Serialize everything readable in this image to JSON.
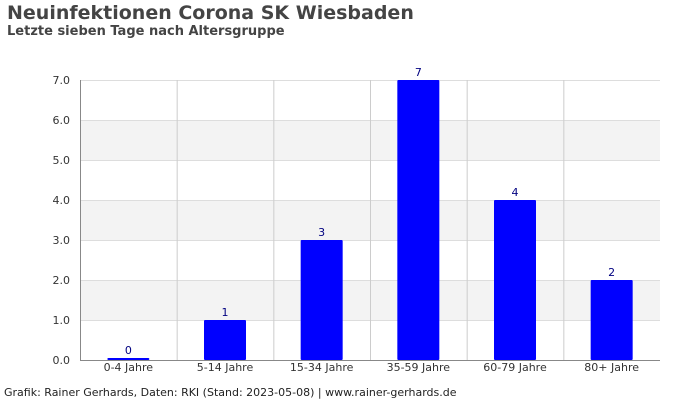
{
  "chart_data": {
    "type": "bar",
    "title": "Neuinfektionen Corona SK Wiesbaden",
    "subtitle": "Letzte sieben Tage nach Altersgruppe",
    "categories": [
      "0-4 Jahre",
      "5-14 Jahre",
      "15-34 Jahre",
      "35-59 Jahre",
      "60-79 Jahre",
      "80+ Jahre"
    ],
    "values": [
      0,
      1,
      3,
      7,
      4,
      2
    ],
    "data_labels": [
      "0",
      "1",
      "3",
      "7",
      "4",
      "2"
    ],
    "yticks": [
      "0.0",
      "1.0",
      "2.0",
      "3.0",
      "4.0",
      "5.0",
      "6.0",
      "7.0"
    ],
    "ylim": [
      0,
      7
    ],
    "xlabel": "",
    "ylabel": "",
    "grid": true,
    "bar_color": "#0000ff",
    "label_color": "#000080"
  },
  "footer": "Grafik: Rainer Gerhards, Daten: RKI (Stand: 2023-05-08) | www.rainer-gerhards.de"
}
